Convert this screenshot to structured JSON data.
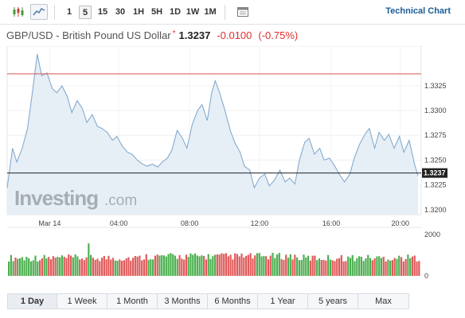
{
  "toolbar": {
    "chart_types": [
      {
        "icon": "candlestick-icon",
        "active": false
      },
      {
        "icon": "area-chart-icon",
        "active": true
      }
    ],
    "timeframes": [
      {
        "label": "1",
        "active": false
      },
      {
        "label": "5",
        "active": true
      },
      {
        "label": "15",
        "active": false
      },
      {
        "label": "30",
        "active": false
      },
      {
        "label": "1H",
        "active": false
      },
      {
        "label": "5H",
        "active": false
      },
      {
        "label": "1D",
        "active": false
      },
      {
        "label": "1W",
        "active": false
      },
      {
        "label": "1M",
        "active": false
      }
    ],
    "extra_icon": "calendar-icon",
    "technical_chart_label": "Technical Chart"
  },
  "quote": {
    "name": "GBP/USD - British Pound US Dollar",
    "star": "*",
    "price": "1.3237",
    "change": "-0.0100",
    "change_pct": "(-0.75%)"
  },
  "colors": {
    "line": "#7aa5cc",
    "area": "#e6eef6",
    "previous_close": "#d9534f",
    "current_price": "#222222",
    "up_volume": "#4caf50",
    "down_volume": "#e05a5a",
    "change": "#e02f2f"
  },
  "watermark": {
    "brand": "Investing",
    "suffix": ".com"
  },
  "chart_data": {
    "type": "area",
    "x_ticks": [
      "Mar 14",
      "04:00",
      "08:00",
      "12:00",
      "16:00",
      "20:00"
    ],
    "ylim": [
      1.3195,
      1.3365
    ],
    "y_ticks": [
      1.3325,
      1.33,
      1.3275,
      1.325,
      1.3225,
      1.32
    ],
    "y_tick_labels": [
      "1.3325",
      "1.3300",
      "1.3275",
      "1.3250",
      "1.3225",
      "1.3200"
    ],
    "previous_close": 1.3337,
    "last_price": 1.3237,
    "last_price_label": "1.3237",
    "series": [
      {
        "points": [
          [
            0,
            1.3222
          ],
          [
            0.6,
            1.3262
          ],
          [
            1.1,
            1.3248
          ],
          [
            1.7,
            1.3262
          ],
          [
            2.3,
            1.3282
          ],
          [
            2.8,
            1.3315
          ],
          [
            3.4,
            1.3357
          ],
          [
            3.9,
            1.3335
          ],
          [
            4.5,
            1.3338
          ],
          [
            5.1,
            1.3322
          ],
          [
            5.6,
            1.3318
          ],
          [
            6.2,
            1.3325
          ],
          [
            6.8,
            1.3314
          ],
          [
            7.3,
            1.3298
          ],
          [
            7.9,
            1.331
          ],
          [
            8.5,
            1.3302
          ],
          [
            9.0,
            1.3288
          ],
          [
            9.6,
            1.3296
          ],
          [
            10.2,
            1.3284
          ],
          [
            10.7,
            1.3282
          ],
          [
            11.3,
            1.3278
          ],
          [
            11.9,
            1.327
          ],
          [
            12.4,
            1.3274
          ],
          [
            13.0,
            1.3264
          ],
          [
            13.6,
            1.3258
          ],
          [
            14.1,
            1.3256
          ],
          [
            14.7,
            1.325
          ],
          [
            15.3,
            1.3246
          ],
          [
            15.8,
            1.3244
          ],
          [
            16.4,
            1.3246
          ],
          [
            17.0,
            1.3243
          ],
          [
            17.5,
            1.3248
          ],
          [
            18.1,
            1.3252
          ],
          [
            18.6,
            1.326
          ],
          [
            19.2,
            1.328
          ],
          [
            19.8,
            1.3272
          ],
          [
            20.3,
            1.3262
          ],
          [
            20.9,
            1.3286
          ],
          [
            21.5,
            1.33
          ],
          [
            22.0,
            1.3306
          ],
          [
            22.6,
            1.329
          ],
          [
            23.1,
            1.3318
          ],
          [
            23.5,
            1.333
          ],
          [
            24.0,
            1.3318
          ],
          [
            24.6,
            1.33
          ],
          [
            25.2,
            1.328
          ],
          [
            25.7,
            1.3268
          ],
          [
            26.3,
            1.3258
          ],
          [
            26.8,
            1.3244
          ],
          [
            27.4,
            1.324
          ],
          [
            27.9,
            1.3222
          ],
          [
            28.5,
            1.3232
          ],
          [
            29.1,
            1.3236
          ],
          [
            29.6,
            1.3224
          ],
          [
            30.2,
            1.323
          ],
          [
            30.8,
            1.324
          ],
          [
            31.4,
            1.3228
          ],
          [
            31.9,
            1.3232
          ],
          [
            32.5,
            1.3226
          ],
          [
            33.0,
            1.325
          ],
          [
            33.6,
            1.3268
          ],
          [
            34.1,
            1.3272
          ],
          [
            34.7,
            1.3256
          ],
          [
            35.3,
            1.3262
          ],
          [
            35.8,
            1.325
          ],
          [
            36.4,
            1.3252
          ],
          [
            37.0,
            1.3244
          ],
          [
            37.5,
            1.3236
          ],
          [
            38.1,
            1.3228
          ],
          [
            38.7,
            1.3236
          ],
          [
            39.2,
            1.3252
          ],
          [
            39.8,
            1.3266
          ],
          [
            40.4,
            1.3276
          ],
          [
            40.9,
            1.3282
          ],
          [
            41.5,
            1.3262
          ],
          [
            42.0,
            1.3278
          ],
          [
            42.6,
            1.327
          ],
          [
            43.1,
            1.3276
          ],
          [
            43.7,
            1.3262
          ],
          [
            44.3,
            1.3274
          ],
          [
            44.8,
            1.3258
          ],
          [
            45.4,
            1.327
          ],
          [
            46.0,
            1.3246
          ],
          [
            46.4,
            1.3234
          ]
        ]
      }
    ],
    "volume": {
      "ylim": [
        0,
        2000
      ],
      "y_tick_labels": [
        "2000",
        "0"
      ]
    }
  },
  "periods": [
    {
      "label": "1 Day",
      "active": true
    },
    {
      "label": "1 Week",
      "active": false
    },
    {
      "label": "1 Month",
      "active": false
    },
    {
      "label": "3 Months",
      "active": false
    },
    {
      "label": "6 Months",
      "active": false
    },
    {
      "label": "1 Year",
      "active": false
    },
    {
      "label": "5 years",
      "active": false
    },
    {
      "label": "Max",
      "active": false
    }
  ]
}
